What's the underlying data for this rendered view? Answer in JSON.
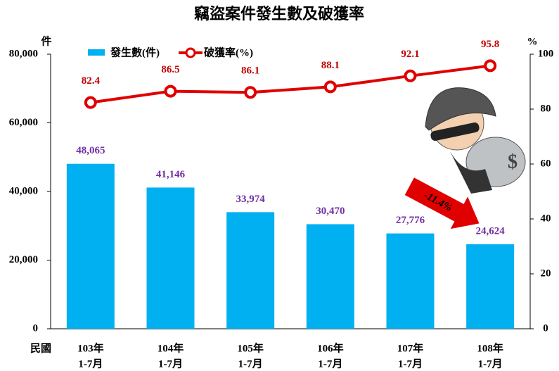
{
  "chart_data": {
    "type": "bar-line",
    "title": "竊盜案件發生數及破獲率",
    "y_label": "件",
    "y2_label": "%",
    "x_label": "民國",
    "annotation": "-11.4%",
    "categories": [
      [
        "103年",
        "1-7月"
      ],
      [
        "104年",
        "1-7月"
      ],
      [
        "105年",
        "1-7月"
      ],
      [
        "106年",
        "1-7月"
      ],
      [
        "107年",
        "1-7月"
      ],
      [
        "108年",
        "1-7月"
      ]
    ],
    "series": [
      {
        "name": "發生數(件)",
        "type": "bar",
        "color": "#00b0f0",
        "label_color": "#7030a0",
        "values": [
          48065,
          41146,
          33974,
          30470,
          27776,
          24624
        ],
        "value_labels": [
          "48,065",
          "41,146",
          "33,974",
          "30,470",
          "27,776",
          "24,624"
        ]
      },
      {
        "name": "破獲率(%)",
        "type": "line",
        "axis": "y2",
        "color": "#e00000",
        "label_color": "#c00000",
        "values": [
          82.4,
          86.5,
          86.1,
          88.1,
          92.1,
          95.8
        ]
      }
    ],
    "ylim": [
      0,
      80000
    ],
    "yticks": [
      0,
      {
        "value": 20000,
        "label": "20,000"
      },
      {
        "value": 40000,
        "label": "40,000"
      },
      {
        "value": 60000,
        "label": "60,000"
      },
      {
        "value": 80000,
        "label": "80,000"
      }
    ],
    "y2lim": [
      0,
      100
    ],
    "y2ticks": [
      0,
      20,
      40,
      60,
      80,
      100
    ]
  }
}
